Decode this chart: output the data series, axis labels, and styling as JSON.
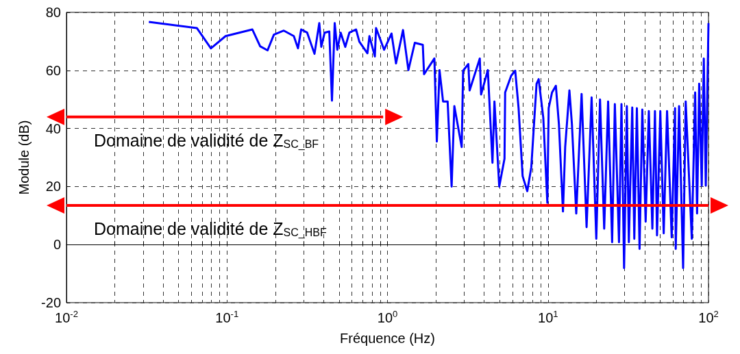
{
  "chart_data": {
    "type": "line",
    "xlabel": "Fréquence (Hz)",
    "ylabel": "Module (dB)",
    "log": "x",
    "grid": true,
    "marker": "none",
    "xlim": [
      0.01,
      100
    ],
    "xticks": [
      {
        "value": 0.01,
        "label": "10$^{-2}$"
      },
      {
        "value": 0.1,
        "label": "10$^{-1}$"
      },
      {
        "value": 1,
        "label": "10$^{0}$"
      },
      {
        "value": 10,
        "label": "10$^{1}$"
      },
      {
        "value": 100,
        "label": "10$^{2}$"
      }
    ],
    "ylim": [
      -20,
      80
    ],
    "yticks": [
      -20,
      0,
      20,
      40,
      60,
      80
    ],
    "x": [
      0.0326,
      0.0649,
      0.0794,
      0.098,
      0.144,
      0.161,
      0.179,
      0.196,
      0.226,
      0.261,
      0.277,
      0.29,
      0.316,
      0.351,
      0.376,
      0.387,
      0.406,
      0.434,
      0.451,
      0.469,
      0.487,
      0.511,
      0.546,
      0.579,
      0.637,
      0.668,
      0.75,
      0.772,
      0.834,
      0.849,
      0.953,
      1.06,
      1.13,
      1.25,
      1.35,
      1.48,
      1.66,
      1.69,
      1.96,
      2.03,
      2.11,
      2.22,
      2.37,
      2.51,
      2.61,
      2.9,
      2.96,
      3.19,
      3.25,
      3.76,
      3.83,
      4.22,
      4.51,
      4.64,
      4.97,
      5.36,
      5.41,
      5.9,
      6.25,
      6.56,
      6.95,
      7.43,
      7.87,
      8.49,
      8.75,
      9.35,
      9.91,
      10.1,
      10.6,
      11.2,
      11.7,
      12.4,
      12.8,
      13.6,
      14.1,
      15,
      16.2,
      17.4,
      18.7,
      20,
      21.1,
      22.4,
      23.7,
      25.1,
      26.1,
      27.7,
      28.7,
      29.8,
      31,
      31.9,
      33.5,
      34.5,
      35.8,
      37.2,
      38.7,
      40.6,
      42.5,
      44.7,
      46.4,
      47.8,
      50.1,
      52.6,
      55.2,
      59,
      61.9,
      62.5,
      65.6,
      69.5,
      72.1,
      78.7,
      82.6,
      84.9,
      87.5,
      90.8,
      93.5,
      96.2,
      100
    ],
    "series": [
      {
        "color": "#0000ff",
        "values": [
          76.7,
          74.6,
          67.6,
          71.8,
          74.1,
          68.3,
          66.9,
          72.3,
          73.7,
          71.8,
          67.6,
          74.1,
          73,
          65.7,
          76.3,
          68.1,
          73,
          73.4,
          49.6,
          76.3,
          67.1,
          73,
          68.1,
          73,
          74.1,
          69.9,
          65.9,
          71.8,
          64.8,
          74.6,
          67.1,
          72.7,
          62.4,
          73.9,
          60.1,
          69.5,
          68.8,
          58.7,
          64.1,
          35.5,
          60.1,
          49.3,
          49.3,
          20,
          47.7,
          33.6,
          59.9,
          62.2,
          53.1,
          64.1,
          51.7,
          60.1,
          28.2,
          49.3,
          20,
          29.6,
          52.4,
          58.2,
          59.9,
          47,
          23.6,
          18.4,
          26.6,
          55.4,
          57,
          43.7,
          14.4,
          47,
          52.4,
          54.7,
          41.4,
          11.4,
          33.6,
          53.1,
          41.4,
          10.7,
          51.9,
          6,
          50.7,
          2,
          50,
          5.5,
          49.3,
          0.8,
          48.4,
          0.8,
          48.4,
          -8.1,
          47.7,
          0.8,
          47.2,
          2,
          47,
          -1.5,
          46.5,
          7.9,
          46,
          5.5,
          46,
          3.2,
          46,
          3.9,
          46,
          2.5,
          47,
          -1.5,
          47.7,
          -8.1,
          49.3,
          2,
          52.4,
          10.7,
          55.4,
          20.3,
          64.1,
          20.3,
          76.3
        ]
      },
      {
        "name": "Domaine de validité de Z$_{SC_BF}$",
        "color": "#ff0000",
        "x": [
          0.01,
          0.94
        ],
        "values": [
          44,
          44
        ]
      },
      {
        "name": "Domaine de validité de Z$_{SC_HBF}$",
        "color": "#ff0000",
        "x": [
          0.01,
          100
        ],
        "values": [
          13.5,
          13.5
        ]
      }
    ]
  }
}
